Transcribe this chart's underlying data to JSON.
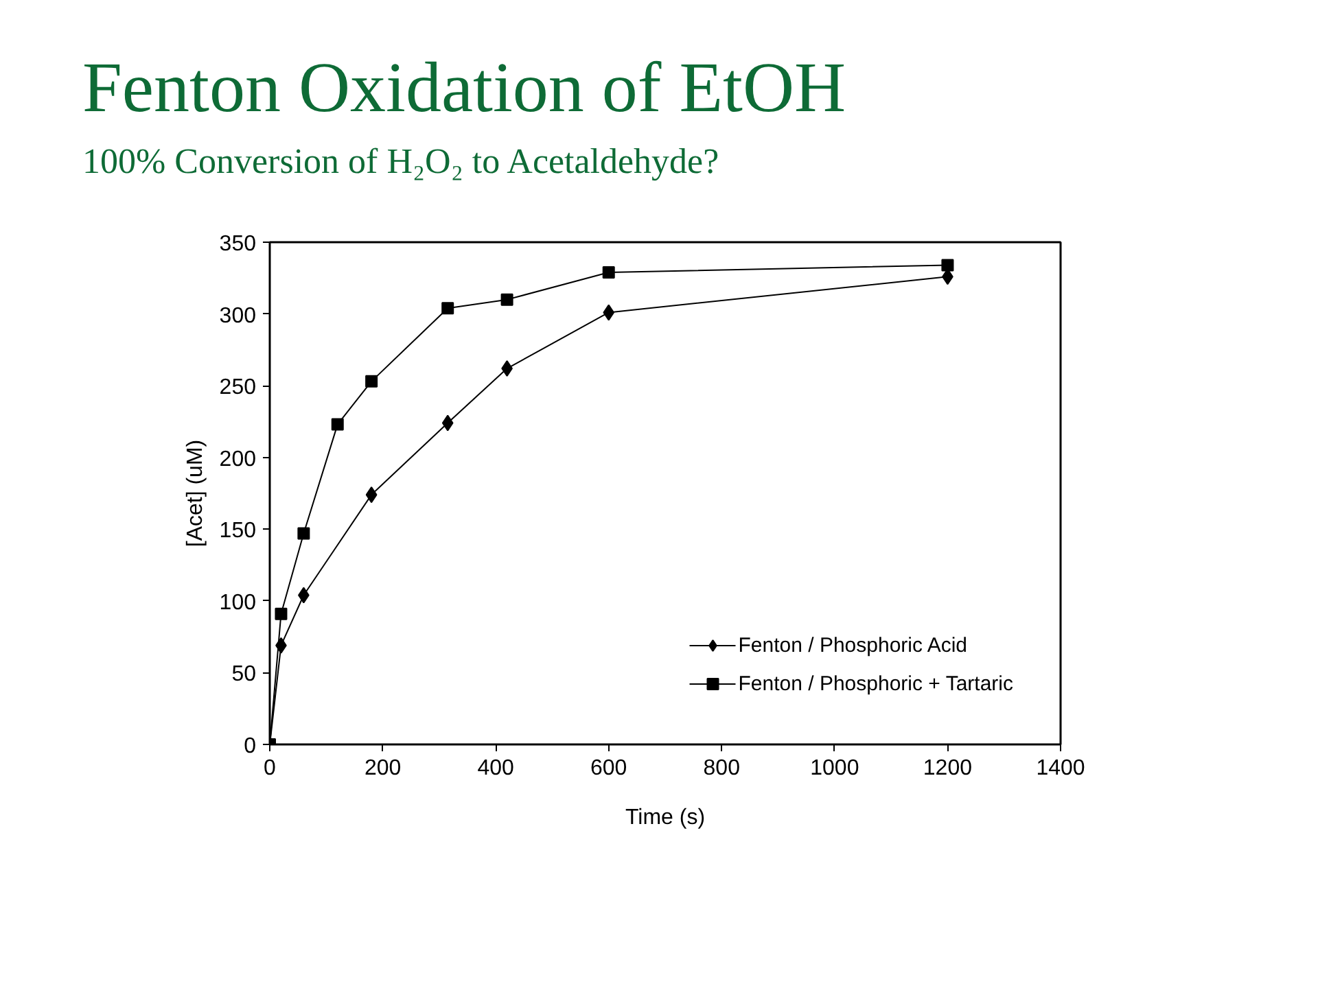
{
  "chart_data": {
    "type": "line",
    "title": "Fenton Oxidation of EtOH",
    "subtitle": "100% Conversion of H₂O₂ to Acetaldehyde?",
    "xlabel": "Time (s)",
    "ylabel": "[Acet] (uM)",
    "xlim": [
      0,
      1400
    ],
    "ylim": [
      0,
      350
    ],
    "xticks": [
      0,
      200,
      400,
      600,
      800,
      1000,
      1200,
      1400
    ],
    "yticks": [
      0,
      50,
      100,
      150,
      200,
      250,
      300,
      350
    ],
    "grid": false,
    "legend": "bottom right",
    "line_style": "solid",
    "series": [
      {
        "name": "Fenton / Phosphoric Acid",
        "color": "#000000",
        "marker": "diamond",
        "x": [
          0,
          20,
          60,
          180,
          315,
          420,
          600,
          1200
        ],
        "values": [
          0,
          69,
          104,
          174,
          224,
          262,
          301,
          326
        ]
      },
      {
        "name": "Fenton / Phosphoric + Tartaric",
        "color": "#000000",
        "marker": "square",
        "x": [
          0,
          20,
          60,
          120,
          180,
          315,
          420,
          600,
          1200
        ],
        "values": [
          0,
          91,
          147,
          223,
          253,
          304,
          310,
          329,
          334
        ]
      }
    ]
  }
}
